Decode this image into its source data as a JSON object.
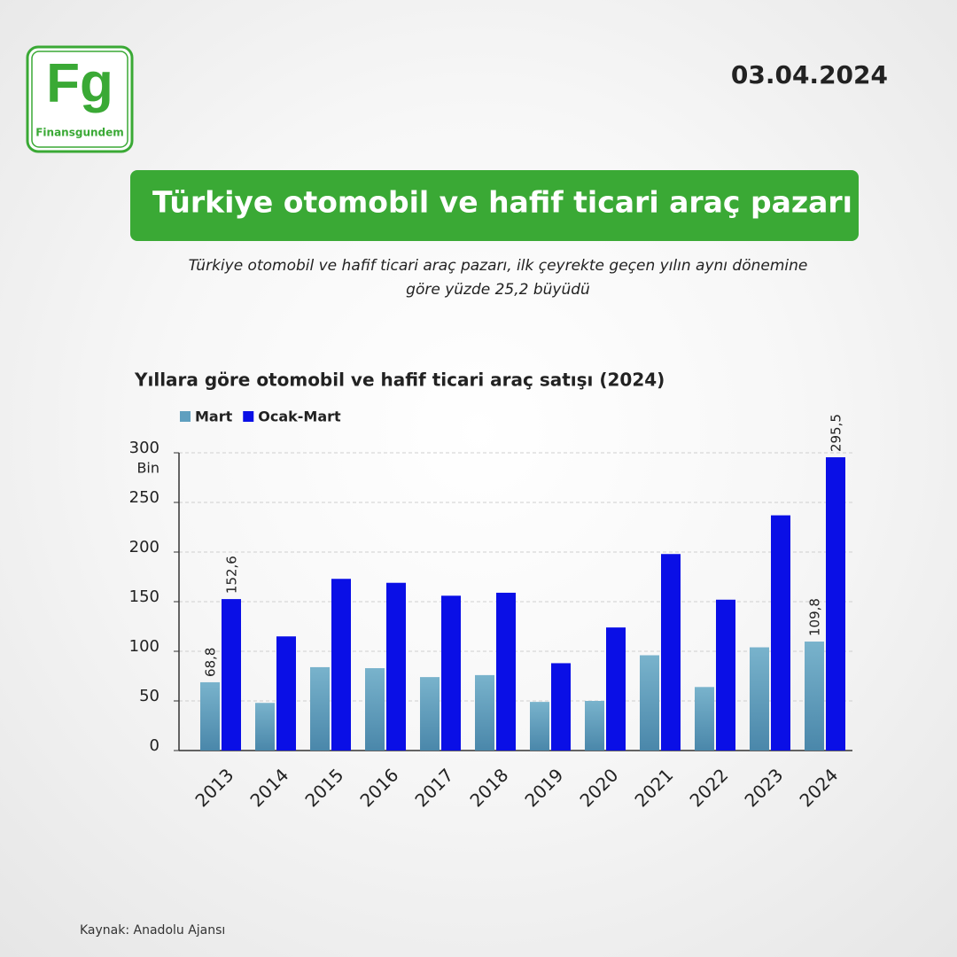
{
  "page": {
    "logo_mark": "Fg",
    "logo_name": "Finansgundem",
    "date": "03.04.2024",
    "headline": "Türkiye otomobil ve hafif ticari araç pazarı",
    "subtitle_lines": [
      "Türkiye otomobil ve hafif ticari araç pazarı, ilk çeyrekte geçen yılın aynı dönemine",
      "göre yüzde 25,2 büyüdü"
    ],
    "source": "Kaynak: Anadolu Ajansı"
  },
  "chart_data": {
    "type": "bar",
    "title": "Yıllara göre otomobil ve hafif ticari araç satışı (2024)",
    "y_unit": "Bin",
    "categories": [
      "2013",
      "2014",
      "2015",
      "2016",
      "2017",
      "2018",
      "2019",
      "2020",
      "2021",
      "2022",
      "2023",
      "2024"
    ],
    "series": [
      {
        "name": "Mart",
        "color": "#5f9fbf",
        "values": [
          68.8,
          48,
          84,
          83,
          74,
          76,
          49,
          50,
          96,
          64,
          104,
          109.8
        ],
        "value_labels": [
          "68,8",
          null,
          null,
          null,
          null,
          null,
          null,
          null,
          null,
          null,
          null,
          "109,8"
        ]
      },
      {
        "name": "Ocak-Mart",
        "color": "#0a0fe6",
        "values": [
          152.6,
          115,
          173,
          169,
          156,
          159,
          88,
          124,
          198,
          152,
          237,
          295.5
        ],
        "value_labels": [
          "152,6",
          null,
          null,
          null,
          null,
          null,
          null,
          null,
          null,
          null,
          null,
          "295,5"
        ]
      }
    ],
    "ylim": [
      0,
      300
    ],
    "yticks": [
      0,
      50,
      100,
      150,
      200,
      250,
      300
    ],
    "grid": true,
    "legend": "top-left"
  }
}
